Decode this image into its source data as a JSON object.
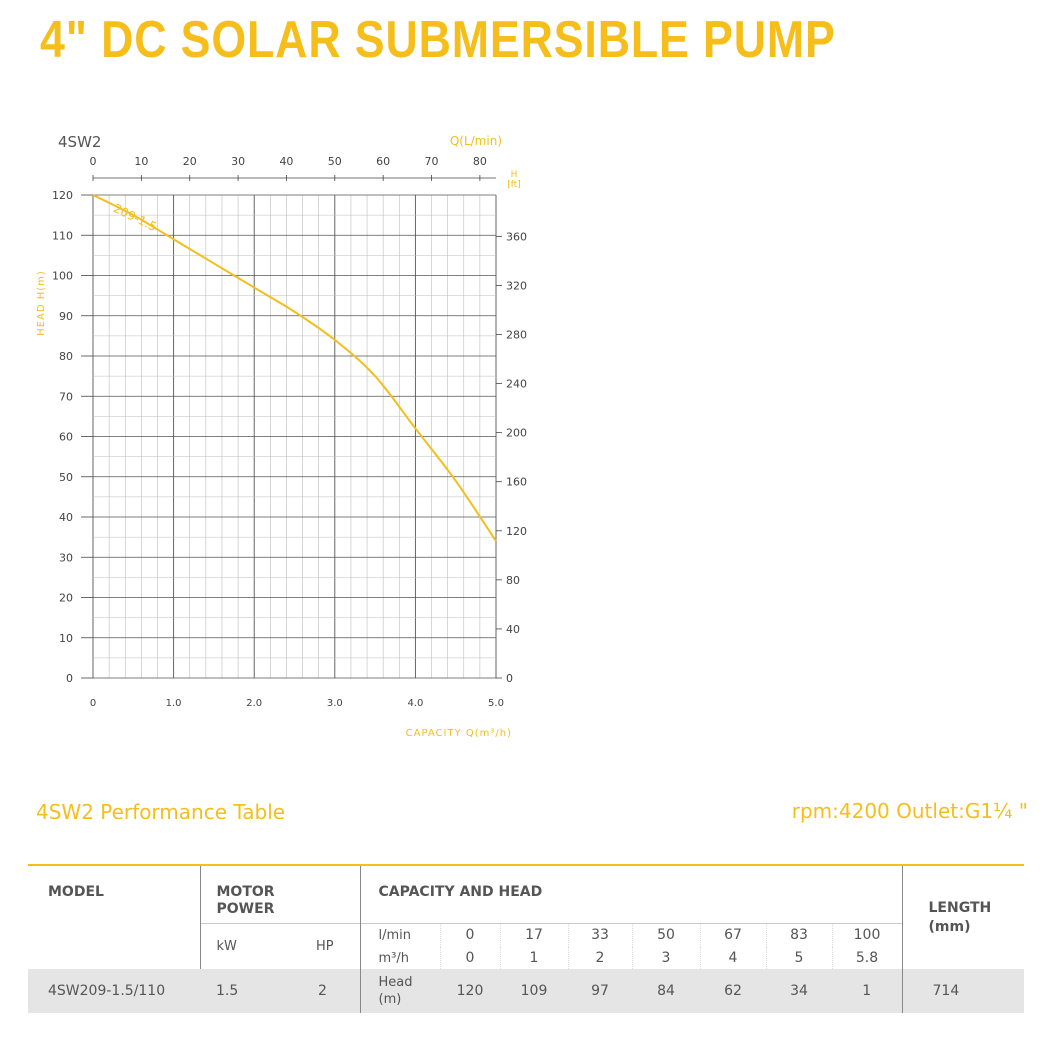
{
  "title": "4\" DC SOLAR SUBMERSIBLE PUMP",
  "colors": {
    "accent": "#f5be1b",
    "grid": "#bdbdbd",
    "grid_major": "#555555",
    "text": "#444444"
  },
  "chart_data": {
    "type": "line",
    "model_label": "4SW2",
    "top_axis_label": "Q(L/min)",
    "top_ticks": [
      "0",
      "10",
      "20",
      "30",
      "40",
      "50",
      "60",
      "70",
      "80"
    ],
    "top_tick_values": [
      0,
      10,
      20,
      30,
      40,
      50,
      60,
      70,
      80
    ],
    "xlabel": "CAPACITY  Q(m³/h)",
    "x_ticks": [
      "0",
      "1.0",
      "2.0",
      "3.0",
      "4.0",
      "5.0"
    ],
    "x_tick_values": [
      0,
      1,
      2,
      3,
      4,
      5
    ],
    "xlim": [
      0,
      5
    ],
    "ylabel": "HEAD  H(m)",
    "y_ticks": [
      "0",
      "10",
      "20",
      "30",
      "40",
      "50",
      "60",
      "70",
      "80",
      "90",
      "100",
      "110",
      "120"
    ],
    "y_tick_values": [
      0,
      10,
      20,
      30,
      40,
      50,
      60,
      70,
      80,
      90,
      100,
      110,
      120
    ],
    "ylim": [
      0,
      120
    ],
    "right_axis_label_line1": "H",
    "right_axis_label_line2": "[ft]",
    "right_ticks": [
      "0",
      "40",
      "80",
      "120",
      "160",
      "200",
      "240",
      "280",
      "320",
      "360"
    ],
    "right_tick_values": [
      0,
      40,
      80,
      120,
      160,
      200,
      240,
      280,
      320,
      360
    ],
    "grid": true,
    "series": [
      {
        "name": "209-1.5",
        "x": [
          0,
          0.5,
          1.0,
          1.5,
          2.0,
          2.5,
          3.0,
          3.5,
          4.0,
          4.5,
          5.0
        ],
        "y": [
          120,
          115,
          109,
          103,
          97,
          91,
          84,
          75,
          62,
          49,
          34
        ]
      }
    ]
  },
  "table": {
    "title": "4SW2 Performance Table",
    "meta": "rpm:4200  Outlet:G1¼ \"",
    "h_model": "MODEL",
    "h_motor": "MOTOR\nPOWER",
    "h_capacity": "CAPACITY AND HEAD",
    "h_length": "LENGTH\n(mm)",
    "h_kw": "kW",
    "h_hp": "HP",
    "lmin_label": "l/min",
    "m3h_label": "m³/h",
    "head_label": "Head\n(m)",
    "lmin": [
      "0",
      "17",
      "33",
      "50",
      "67",
      "83",
      "100"
    ],
    "m3h": [
      "0",
      "1",
      "2",
      "3",
      "4",
      "5",
      "5.8"
    ],
    "row": {
      "model": "4SW209-1.5/110",
      "kw": "1.5",
      "hp": "2",
      "head": [
        "120",
        "109",
        "97",
        "84",
        "62",
        "34",
        "1"
      ],
      "length": "714"
    }
  }
}
